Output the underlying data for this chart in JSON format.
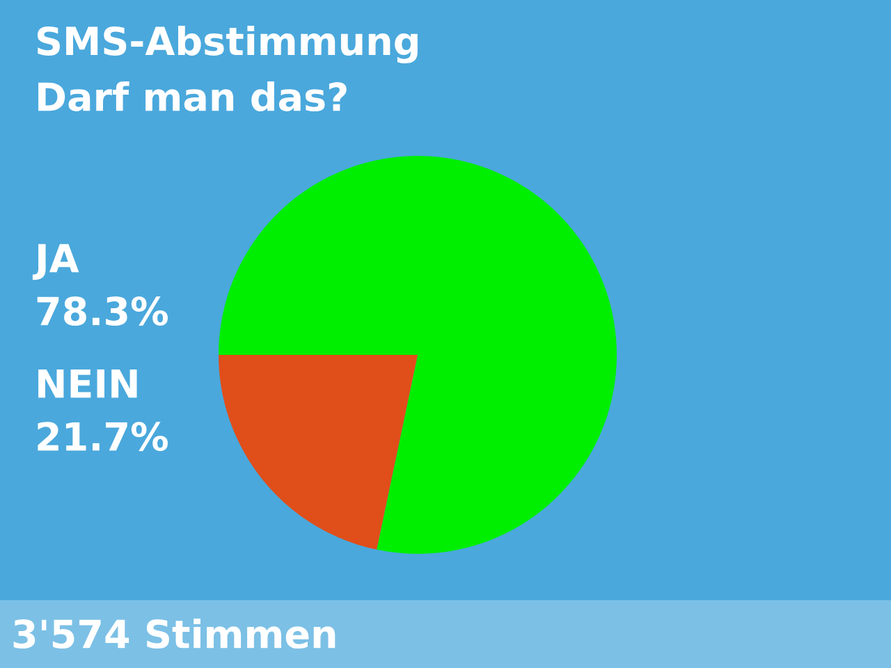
{
  "chart_data": {
    "type": "pie",
    "title": "SMS-Abstimmung",
    "subtitle": "Darf man das?",
    "categories": [
      "JA",
      "NEIN"
    ],
    "values": [
      78.3,
      21.7
    ],
    "colors": [
      "#00ee00",
      "#e04e1a"
    ],
    "value_labels": [
      "78.3%",
      "21.7%"
    ],
    "annotations": [
      "3'574 Stimmen"
    ]
  }
}
